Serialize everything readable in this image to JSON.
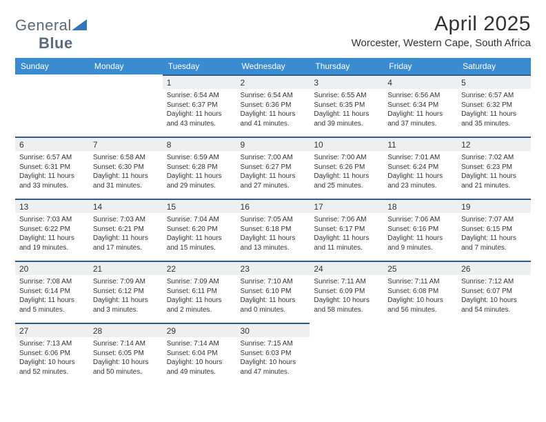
{
  "logo": {
    "text1": "General",
    "text2": "Blue"
  },
  "title": "April 2025",
  "location": "Worcester, Western Cape, South Africa",
  "colors": {
    "header_bg": "#3b8bd0",
    "day_border_top": "#2d5c8a",
    "day_num_bg": "#edeff1",
    "logo_text": "#5a6a78",
    "logo_accent": "#2f77b8"
  },
  "weekdays": [
    "Sunday",
    "Monday",
    "Tuesday",
    "Wednesday",
    "Thursday",
    "Friday",
    "Saturday"
  ],
  "weeks": [
    [
      {
        "day": "",
        "sunrise": "",
        "sunset": "",
        "daylight": ""
      },
      {
        "day": "",
        "sunrise": "",
        "sunset": "",
        "daylight": ""
      },
      {
        "day": "1",
        "sunrise": "Sunrise: 6:54 AM",
        "sunset": "Sunset: 6:37 PM",
        "daylight": "Daylight: 11 hours and 43 minutes."
      },
      {
        "day": "2",
        "sunrise": "Sunrise: 6:54 AM",
        "sunset": "Sunset: 6:36 PM",
        "daylight": "Daylight: 11 hours and 41 minutes."
      },
      {
        "day": "3",
        "sunrise": "Sunrise: 6:55 AM",
        "sunset": "Sunset: 6:35 PM",
        "daylight": "Daylight: 11 hours and 39 minutes."
      },
      {
        "day": "4",
        "sunrise": "Sunrise: 6:56 AM",
        "sunset": "Sunset: 6:34 PM",
        "daylight": "Daylight: 11 hours and 37 minutes."
      },
      {
        "day": "5",
        "sunrise": "Sunrise: 6:57 AM",
        "sunset": "Sunset: 6:32 PM",
        "daylight": "Daylight: 11 hours and 35 minutes."
      }
    ],
    [
      {
        "day": "6",
        "sunrise": "Sunrise: 6:57 AM",
        "sunset": "Sunset: 6:31 PM",
        "daylight": "Daylight: 11 hours and 33 minutes."
      },
      {
        "day": "7",
        "sunrise": "Sunrise: 6:58 AM",
        "sunset": "Sunset: 6:30 PM",
        "daylight": "Daylight: 11 hours and 31 minutes."
      },
      {
        "day": "8",
        "sunrise": "Sunrise: 6:59 AM",
        "sunset": "Sunset: 6:28 PM",
        "daylight": "Daylight: 11 hours and 29 minutes."
      },
      {
        "day": "9",
        "sunrise": "Sunrise: 7:00 AM",
        "sunset": "Sunset: 6:27 PM",
        "daylight": "Daylight: 11 hours and 27 minutes."
      },
      {
        "day": "10",
        "sunrise": "Sunrise: 7:00 AM",
        "sunset": "Sunset: 6:26 PM",
        "daylight": "Daylight: 11 hours and 25 minutes."
      },
      {
        "day": "11",
        "sunrise": "Sunrise: 7:01 AM",
        "sunset": "Sunset: 6:24 PM",
        "daylight": "Daylight: 11 hours and 23 minutes."
      },
      {
        "day": "12",
        "sunrise": "Sunrise: 7:02 AM",
        "sunset": "Sunset: 6:23 PM",
        "daylight": "Daylight: 11 hours and 21 minutes."
      }
    ],
    [
      {
        "day": "13",
        "sunrise": "Sunrise: 7:03 AM",
        "sunset": "Sunset: 6:22 PM",
        "daylight": "Daylight: 11 hours and 19 minutes."
      },
      {
        "day": "14",
        "sunrise": "Sunrise: 7:03 AM",
        "sunset": "Sunset: 6:21 PM",
        "daylight": "Daylight: 11 hours and 17 minutes."
      },
      {
        "day": "15",
        "sunrise": "Sunrise: 7:04 AM",
        "sunset": "Sunset: 6:20 PM",
        "daylight": "Daylight: 11 hours and 15 minutes."
      },
      {
        "day": "16",
        "sunrise": "Sunrise: 7:05 AM",
        "sunset": "Sunset: 6:18 PM",
        "daylight": "Daylight: 11 hours and 13 minutes."
      },
      {
        "day": "17",
        "sunrise": "Sunrise: 7:06 AM",
        "sunset": "Sunset: 6:17 PM",
        "daylight": "Daylight: 11 hours and 11 minutes."
      },
      {
        "day": "18",
        "sunrise": "Sunrise: 7:06 AM",
        "sunset": "Sunset: 6:16 PM",
        "daylight": "Daylight: 11 hours and 9 minutes."
      },
      {
        "day": "19",
        "sunrise": "Sunrise: 7:07 AM",
        "sunset": "Sunset: 6:15 PM",
        "daylight": "Daylight: 11 hours and 7 minutes."
      }
    ],
    [
      {
        "day": "20",
        "sunrise": "Sunrise: 7:08 AM",
        "sunset": "Sunset: 6:14 PM",
        "daylight": "Daylight: 11 hours and 5 minutes."
      },
      {
        "day": "21",
        "sunrise": "Sunrise: 7:09 AM",
        "sunset": "Sunset: 6:12 PM",
        "daylight": "Daylight: 11 hours and 3 minutes."
      },
      {
        "day": "22",
        "sunrise": "Sunrise: 7:09 AM",
        "sunset": "Sunset: 6:11 PM",
        "daylight": "Daylight: 11 hours and 2 minutes."
      },
      {
        "day": "23",
        "sunrise": "Sunrise: 7:10 AM",
        "sunset": "Sunset: 6:10 PM",
        "daylight": "Daylight: 11 hours and 0 minutes."
      },
      {
        "day": "24",
        "sunrise": "Sunrise: 7:11 AM",
        "sunset": "Sunset: 6:09 PM",
        "daylight": "Daylight: 10 hours and 58 minutes."
      },
      {
        "day": "25",
        "sunrise": "Sunrise: 7:11 AM",
        "sunset": "Sunset: 6:08 PM",
        "daylight": "Daylight: 10 hours and 56 minutes."
      },
      {
        "day": "26",
        "sunrise": "Sunrise: 7:12 AM",
        "sunset": "Sunset: 6:07 PM",
        "daylight": "Daylight: 10 hours and 54 minutes."
      }
    ],
    [
      {
        "day": "27",
        "sunrise": "Sunrise: 7:13 AM",
        "sunset": "Sunset: 6:06 PM",
        "daylight": "Daylight: 10 hours and 52 minutes."
      },
      {
        "day": "28",
        "sunrise": "Sunrise: 7:14 AM",
        "sunset": "Sunset: 6:05 PM",
        "daylight": "Daylight: 10 hours and 50 minutes."
      },
      {
        "day": "29",
        "sunrise": "Sunrise: 7:14 AM",
        "sunset": "Sunset: 6:04 PM",
        "daylight": "Daylight: 10 hours and 49 minutes."
      },
      {
        "day": "30",
        "sunrise": "Sunrise: 7:15 AM",
        "sunset": "Sunset: 6:03 PM",
        "daylight": "Daylight: 10 hours and 47 minutes."
      },
      {
        "day": "",
        "sunrise": "",
        "sunset": "",
        "daylight": ""
      },
      {
        "day": "",
        "sunrise": "",
        "sunset": "",
        "daylight": ""
      },
      {
        "day": "",
        "sunrise": "",
        "sunset": "",
        "daylight": ""
      }
    ]
  ]
}
